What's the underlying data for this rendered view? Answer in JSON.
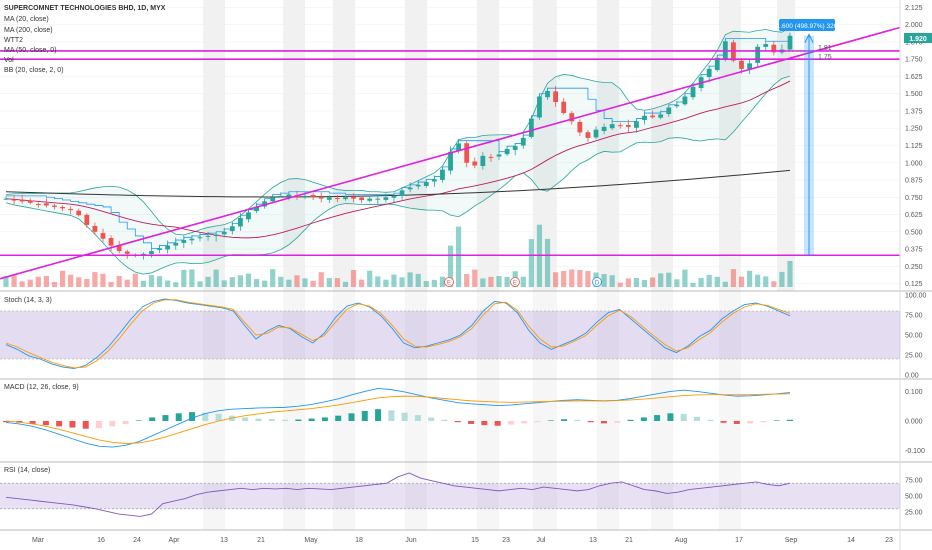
{
  "legend": {
    "symbol": "SUPERCOMNET TECHNOLOGIES BHD, 1D, MYX",
    "indicators": [
      "MA (20, close)",
      "MA (200, close)",
      "WTT2",
      "MA (50, close, 0)",
      "Vol",
      "BB (20, close, 2, 0)"
    ]
  },
  "measure": {
    "label": "1.600 (498.97%) 320",
    "level_upper": "1.81",
    "level_lower": "1.75"
  },
  "last_price": "1.920",
  "event_markers": [
    "E",
    "E",
    "D"
  ],
  "colors": {
    "up": "#26a69a",
    "down": "#ef5350",
    "magenta": "#e020e0",
    "blue": "#2196f3",
    "orange": "#ff9800",
    "ma200": "#333333",
    "ma50": "#c2185b",
    "bb": "#26a69a",
    "rsi": "#7e57c2",
    "shade": "#e6e6e6"
  },
  "chart_data": [
    {
      "type": "candlestick",
      "title": "SUPERCOMNET TECHNOLOGIES BHD, 1D, MYX",
      "y_axis_ticks": [
        "2.125",
        "2.000",
        "1.875",
        "1.750",
        "1.625",
        "1.500",
        "1.375",
        "1.250",
        "1.125",
        "1.000",
        "0.875",
        "0.750",
        "0.625",
        "0.500",
        "0.375",
        "0.250",
        "0.125"
      ],
      "ylim": [
        0.1,
        2.15
      ],
      "x_axis_ticks": [
        "Mar",
        "16",
        "24",
        "Apr",
        "13",
        "21",
        "May",
        "18",
        "Jun",
        "15",
        "23",
        "Jul",
        "13",
        "21",
        "Aug",
        "17",
        "Sep",
        "14",
        "23"
      ],
      "close_series": [
        0.74,
        0.73,
        0.72,
        0.71,
        0.7,
        0.69,
        0.68,
        0.67,
        0.66,
        0.62,
        0.55,
        0.5,
        0.45,
        0.4,
        0.36,
        0.34,
        0.33,
        0.34,
        0.36,
        0.38,
        0.4,
        0.42,
        0.44,
        0.45,
        0.46,
        0.47,
        0.48,
        0.5,
        0.54,
        0.6,
        0.64,
        0.68,
        0.72,
        0.75,
        0.76,
        0.77,
        0.75,
        0.76,
        0.75,
        0.74,
        0.75,
        0.74,
        0.75,
        0.74,
        0.73,
        0.74,
        0.74,
        0.75,
        0.76,
        0.8,
        0.82,
        0.84,
        0.86,
        0.88,
        0.95,
        1.08,
        1.14,
        1.0,
        0.98,
        1.05,
        1.04,
        1.06,
        1.1,
        1.12,
        1.18,
        1.32,
        1.48,
        1.52,
        1.44,
        1.36,
        1.3,
        1.22,
        1.18,
        1.24,
        1.26,
        1.28,
        1.27,
        1.26,
        1.3,
        1.34,
        1.33,
        1.35,
        1.4,
        1.42,
        1.48,
        1.55,
        1.62,
        1.68,
        1.76,
        1.88,
        1.74,
        1.68,
        1.72,
        1.84,
        1.86,
        1.8,
        1.82,
        1.92
      ],
      "horizontal_levels": [
        1.81,
        1.75,
        0.33
      ]
    },
    {
      "type": "line",
      "title": "Stoch (14, 3, 3)",
      "y_axis_ticks": [
        "100.00",
        "75.00",
        "50.00",
        "25.00",
        "0.00"
      ],
      "ylim": [
        0,
        100
      ],
      "series": [
        {
          "values": [
            38,
            32,
            24,
            20,
            14,
            10,
            8,
            12,
            22,
            35,
            52,
            70,
            85,
            92,
            95,
            93,
            90,
            88,
            86,
            84,
            80,
            62,
            45,
            55,
            62,
            58,
            48,
            40,
            52,
            72,
            86,
            90,
            85,
            74,
            58,
            40,
            34,
            36,
            40,
            44,
            50,
            62,
            80,
            92,
            90,
            78,
            56,
            40,
            32,
            38,
            44,
            52,
            66,
            78,
            82,
            70,
            58,
            46,
            34,
            28,
            36,
            48,
            56,
            70,
            80,
            88,
            90,
            86,
            80,
            74
          ]
        },
        {
          "values": [
            40,
            35,
            28,
            22,
            16,
            12,
            9,
            10,
            18,
            30,
            46,
            64,
            80,
            90,
            94,
            94,
            91,
            89,
            87,
            85,
            82,
            66,
            50,
            52,
            60,
            59,
            51,
            43,
            49,
            66,
            82,
            89,
            86,
            77,
            62,
            45,
            36,
            35,
            38,
            42,
            48,
            58,
            75,
            89,
            91,
            81,
            61,
            45,
            35,
            36,
            42,
            49,
            62,
            74,
            81,
            73,
            61,
            49,
            38,
            30,
            34,
            44,
            53,
            66,
            77,
            85,
            89,
            87,
            82,
            77
          ]
        }
      ]
    },
    {
      "type": "bar",
      "title": "MACD (12, 26, close, 9)",
      "y_axis_ticks": [
        "0.100",
        "0.000",
        "-0.100"
      ],
      "ylim": [
        -0.125,
        0.125
      ],
      "histogram": [
        -0.004,
        -0.006,
        -0.01,
        -0.014,
        -0.018,
        -0.022,
        -0.026,
        -0.024,
        -0.018,
        -0.01,
        0.002,
        0.012,
        0.02,
        0.026,
        0.03,
        0.028,
        0.024,
        0.018,
        0.012,
        0.008,
        0.006,
        0.004,
        0.005,
        0.008,
        0.012,
        0.018,
        0.026,
        0.034,
        0.04,
        0.036,
        0.028,
        0.02,
        0.012,
        0.004,
        -0.004,
        -0.01,
        -0.014,
        -0.016,
        -0.012,
        -0.008,
        -0.004,
        0.002,
        0.006,
        0.004,
        -0.004,
        -0.008,
        -0.006,
        0.004,
        0.012,
        0.02,
        0.026,
        0.024,
        0.014,
        0.004,
        -0.006,
        -0.01,
        -0.008,
        -0.004,
        0.002,
        0.004
      ],
      "macd_line": [
        -0.005,
        -0.01,
        -0.018,
        -0.03,
        -0.045,
        -0.06,
        -0.075,
        -0.085,
        -0.088,
        -0.082,
        -0.07,
        -0.05,
        -0.03,
        -0.01,
        0.01,
        0.025,
        0.035,
        0.04,
        0.042,
        0.044,
        0.045,
        0.046,
        0.05,
        0.056,
        0.065,
        0.075,
        0.088,
        0.1,
        0.11,
        0.106,
        0.098,
        0.088,
        0.078,
        0.07,
        0.062,
        0.058,
        0.055,
        0.052,
        0.054,
        0.058,
        0.062,
        0.066,
        0.07,
        0.072,
        0.07,
        0.068,
        0.07,
        0.076,
        0.084,
        0.092,
        0.1,
        0.104,
        0.1,
        0.094,
        0.088,
        0.084,
        0.085,
        0.088,
        0.092,
        0.096
      ],
      "signal_line": [
        0,
        -0.004,
        -0.01,
        -0.018,
        -0.028,
        -0.04,
        -0.052,
        -0.064,
        -0.072,
        -0.076,
        -0.074,
        -0.066,
        -0.054,
        -0.04,
        -0.026,
        -0.012,
        0,
        0.01,
        0.018,
        0.024,
        0.03,
        0.034,
        0.038,
        0.042,
        0.048,
        0.054,
        0.062,
        0.07,
        0.078,
        0.082,
        0.084,
        0.083,
        0.08,
        0.076,
        0.072,
        0.068,
        0.066,
        0.064,
        0.063,
        0.064,
        0.065,
        0.066,
        0.067,
        0.068,
        0.068,
        0.068,
        0.069,
        0.071,
        0.074,
        0.078,
        0.082,
        0.086,
        0.088,
        0.089,
        0.089,
        0.089,
        0.089,
        0.09,
        0.091,
        0.092
      ]
    },
    {
      "type": "line",
      "title": "RSI (14, close)",
      "y_axis_ticks": [
        "75.00",
        "50.00",
        "25.00"
      ],
      "ylim": [
        0,
        100
      ],
      "series": [
        {
          "values": [
            48,
            46,
            44,
            42,
            40,
            38,
            36,
            33,
            30,
            26,
            22,
            20,
            18,
            22,
            38,
            42,
            46,
            52,
            56,
            58,
            60,
            62,
            60,
            62,
            61,
            62,
            60,
            62,
            61,
            60,
            62,
            64,
            66,
            68,
            70,
            80,
            86,
            78,
            74,
            70,
            66,
            64,
            62,
            60,
            58,
            60,
            62,
            60,
            64,
            62,
            60,
            58,
            60,
            66,
            70,
            72,
            66,
            60,
            58,
            54,
            56,
            60,
            62,
            64,
            66,
            68,
            70,
            72,
            68,
            66,
            70
          ]
        }
      ]
    }
  ]
}
